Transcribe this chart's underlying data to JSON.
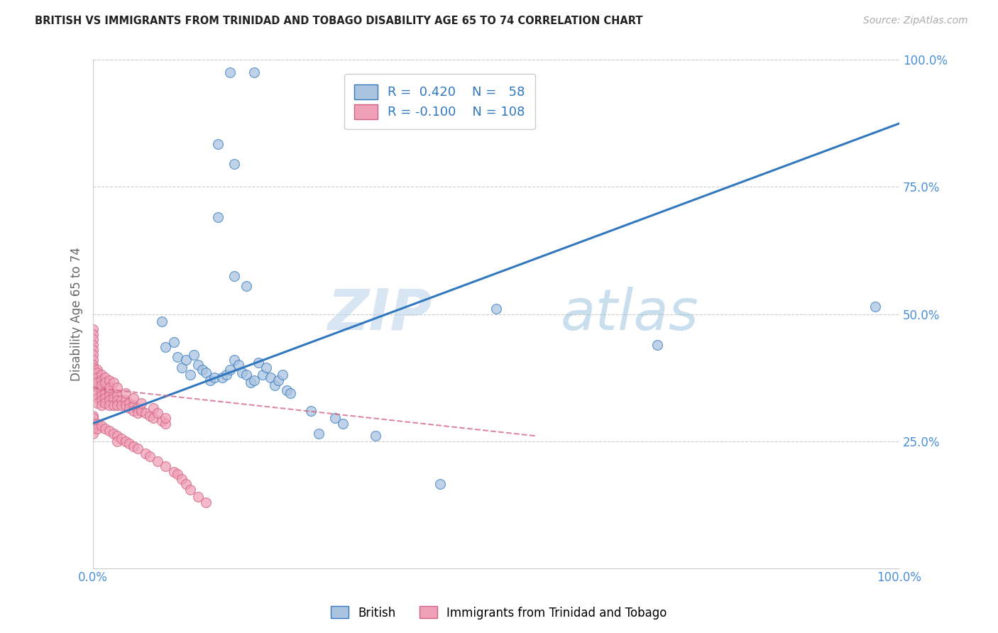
{
  "title": "BRITISH VS IMMIGRANTS FROM TRINIDAD AND TOBAGO DISABILITY AGE 65 TO 74 CORRELATION CHART",
  "source": "Source: ZipAtlas.com",
  "ylabel": "Disability Age 65 to 74",
  "xlim": [
    0.0,
    1.0
  ],
  "ylim": [
    0.0,
    1.0
  ],
  "xticks": [
    0.0,
    0.25,
    0.5,
    0.75,
    1.0
  ],
  "yticks": [
    0.25,
    0.5,
    0.75,
    1.0
  ],
  "xtick_labels": [
    "0.0%",
    "",
    "",
    "",
    "100.0%"
  ],
  "ytick_labels": [
    "25.0%",
    "50.0%",
    "75.0%",
    "100.0%"
  ],
  "british_R": 0.42,
  "british_N": 58,
  "immigrant_R": -0.1,
  "immigrant_N": 108,
  "british_color": "#aac4e0",
  "british_line_color": "#3278be",
  "immigrant_color": "#f0a0b8",
  "immigrant_line_color": "#d06080",
  "legend_label_british": "British",
  "legend_label_immigrant": "Immigrants from Trinidad and Tobago",
  "watermark_zip": "ZIP",
  "watermark_atlas": "atlas",
  "british_line_x": [
    0.0,
    1.0
  ],
  "british_line_y": [
    0.285,
    0.875
  ],
  "immigrant_line_x": [
    0.0,
    0.55
  ],
  "immigrant_line_y": [
    0.355,
    0.26
  ],
  "british_x": [
    0.17,
    0.2,
    0.155,
    0.175,
    0.155,
    0.175,
    0.19,
    0.085,
    0.09,
    0.1,
    0.105,
    0.11,
    0.115,
    0.12,
    0.125,
    0.13,
    0.135,
    0.14,
    0.145,
    0.15,
    0.16,
    0.165,
    0.17,
    0.175,
    0.18,
    0.185,
    0.19,
    0.195,
    0.2,
    0.205,
    0.21,
    0.215,
    0.22,
    0.225,
    0.23,
    0.235,
    0.24,
    0.245,
    0.27,
    0.28,
    0.3,
    0.31,
    0.35,
    0.43,
    0.5,
    0.7,
    0.97
  ],
  "british_y": [
    0.975,
    0.975,
    0.835,
    0.795,
    0.69,
    0.575,
    0.555,
    0.485,
    0.435,
    0.445,
    0.415,
    0.395,
    0.41,
    0.38,
    0.42,
    0.4,
    0.39,
    0.385,
    0.37,
    0.375,
    0.375,
    0.38,
    0.39,
    0.41,
    0.4,
    0.385,
    0.38,
    0.365,
    0.37,
    0.405,
    0.38,
    0.395,
    0.375,
    0.36,
    0.37,
    0.38,
    0.35,
    0.345,
    0.31,
    0.265,
    0.295,
    0.285,
    0.26,
    0.165,
    0.51,
    0.44,
    0.515
  ],
  "immigrant_x": [
    0.005,
    0.005,
    0.005,
    0.005,
    0.005,
    0.005,
    0.01,
    0.01,
    0.01,
    0.01,
    0.01,
    0.015,
    0.015,
    0.015,
    0.015,
    0.02,
    0.02,
    0.02,
    0.02,
    0.025,
    0.025,
    0.025,
    0.03,
    0.03,
    0.03,
    0.035,
    0.035,
    0.04,
    0.04,
    0.045,
    0.045,
    0.05,
    0.05,
    0.055,
    0.055,
    0.06,
    0.065,
    0.07,
    0.075,
    0.085,
    0.09,
    0.0,
    0.0,
    0.0,
    0.0,
    0.0,
    0.0,
    0.0,
    0.0,
    0.0,
    0.005,
    0.005,
    0.005,
    0.005,
    0.01,
    0.01,
    0.01,
    0.015,
    0.015,
    0.02,
    0.02,
    0.025,
    0.03,
    0.04,
    0.05,
    0.06,
    0.075,
    0.08,
    0.09,
    0.0,
    0.0,
    0.0,
    0.0,
    0.0,
    0.005,
    0.005,
    0.01,
    0.015,
    0.02,
    0.025,
    0.03,
    0.03,
    0.035,
    0.04,
    0.045,
    0.05,
    0.055,
    0.065,
    0.07,
    0.08,
    0.09,
    0.1,
    0.105,
    0.11,
    0.115,
    0.12,
    0.13,
    0.14
  ],
  "immigrant_y": [
    0.38,
    0.365,
    0.355,
    0.345,
    0.335,
    0.325,
    0.36,
    0.35,
    0.34,
    0.33,
    0.32,
    0.355,
    0.345,
    0.335,
    0.325,
    0.35,
    0.34,
    0.33,
    0.32,
    0.345,
    0.335,
    0.32,
    0.34,
    0.33,
    0.32,
    0.33,
    0.32,
    0.33,
    0.32,
    0.325,
    0.315,
    0.32,
    0.31,
    0.315,
    0.305,
    0.31,
    0.305,
    0.3,
    0.295,
    0.29,
    0.285,
    0.47,
    0.46,
    0.45,
    0.44,
    0.43,
    0.42,
    0.41,
    0.4,
    0.395,
    0.39,
    0.385,
    0.375,
    0.365,
    0.38,
    0.37,
    0.36,
    0.375,
    0.365,
    0.37,
    0.355,
    0.365,
    0.355,
    0.345,
    0.335,
    0.325,
    0.315,
    0.305,
    0.295,
    0.3,
    0.295,
    0.285,
    0.275,
    0.265,
    0.285,
    0.275,
    0.28,
    0.275,
    0.27,
    0.265,
    0.26,
    0.25,
    0.255,
    0.25,
    0.245,
    0.24,
    0.235,
    0.225,
    0.22,
    0.21,
    0.2,
    0.19,
    0.185,
    0.175,
    0.165,
    0.155,
    0.14,
    0.13
  ]
}
